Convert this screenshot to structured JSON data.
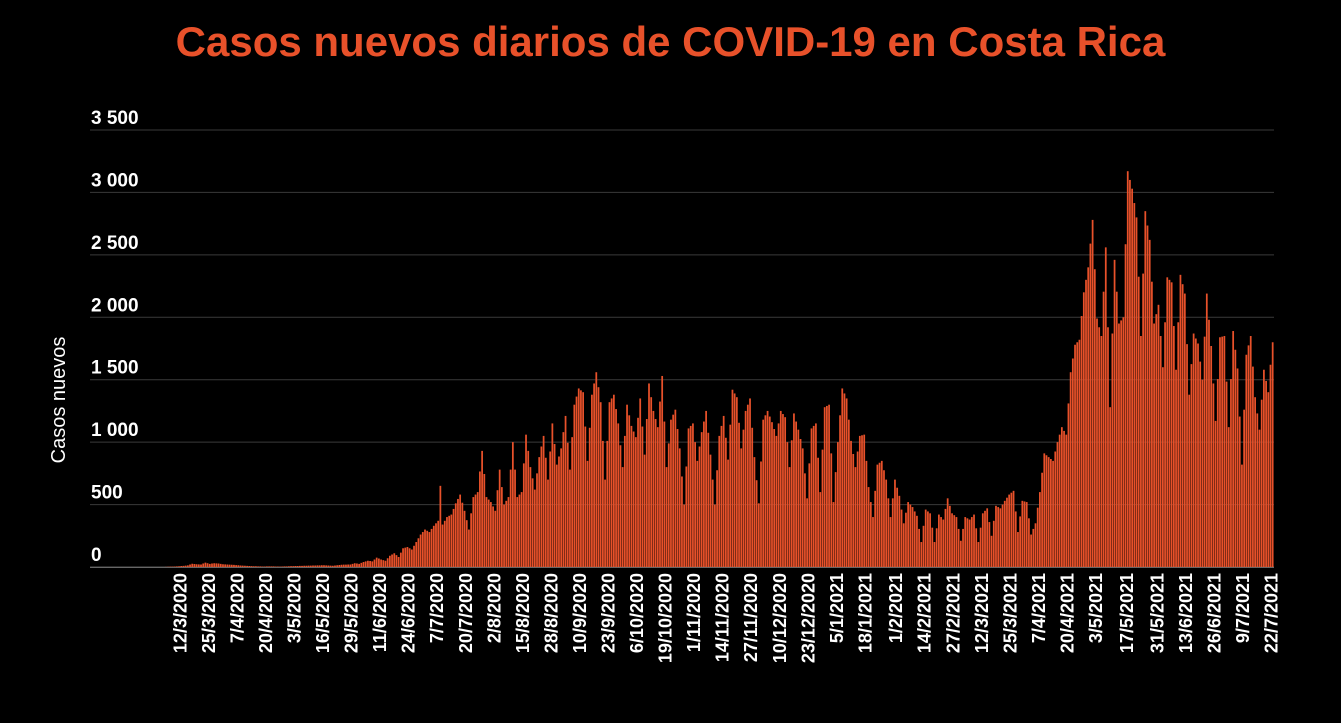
{
  "chart_data": {
    "type": "bar",
    "title": "Casos nuevos diarios de COVID-19 en Costa Rica",
    "xlabel": "",
    "ylabel": "Casos nuevos",
    "ylim": [
      0,
      3500
    ],
    "yticks": [
      0,
      500,
      1000,
      1500,
      2000,
      2500,
      3000,
      3500
    ],
    "ytick_labels": [
      "0",
      "500",
      "1 000",
      "1 500",
      "2 000",
      "2 500",
      "3 000",
      "3 500"
    ],
    "grid": true,
    "legend": null,
    "bar_color": "#E8512A",
    "background": "#000000",
    "x_start": "6/3/2020",
    "x_end": "23/7/2021",
    "xtick_labels": [
      "12/3/2020",
      "25/3/2020",
      "7/4/2020",
      "20/4/2020",
      "3/5/2020",
      "16/5/2020",
      "29/5/2020",
      "11/6/2020",
      "24/6/2020",
      "7/7/2020",
      "20/7/2020",
      "2/8/2020",
      "15/8/2020",
      "28/8/2020",
      "10/9/2020",
      "23/9/2020",
      "6/10/2020",
      "19/10/2020",
      "1/11/2020",
      "14/11/2020",
      "27/11/2020",
      "10/12/2020",
      "23/12/2020",
      "5/1/2021",
      "18/1/2021",
      "1/2/2021",
      "14/2/2021",
      "27/2/2021",
      "12/3/2021",
      "25/3/2021",
      "7/4/2021",
      "20/4/2021",
      "3/5/2021",
      "17/5/2021",
      "31/5/2021",
      "13/6/2021",
      "26/6/2021",
      "9/7/2021",
      "22/7/2021"
    ],
    "xtick_day_index": [
      6,
      19,
      32,
      45,
      58,
      71,
      84,
      97,
      110,
      123,
      136,
      149,
      162,
      175,
      188,
      201,
      214,
      227,
      240,
      253,
      266,
      279,
      292,
      305,
      318,
      332,
      345,
      358,
      371,
      384,
      397,
      410,
      423,
      437,
      451,
      464,
      477,
      490,
      503
    ],
    "values": []
  },
  "series_keypoints": [
    [
      0,
      1
    ],
    [
      5,
      5
    ],
    [
      8,
      9
    ],
    [
      10,
      13
    ],
    [
      12,
      26
    ],
    [
      14,
      22
    ],
    [
      16,
      20
    ],
    [
      18,
      35
    ],
    [
      20,
      25
    ],
    [
      22,
      30
    ],
    [
      24,
      28
    ],
    [
      26,
      22
    ],
    [
      28,
      20
    ],
    [
      30,
      18
    ],
    [
      32,
      15
    ],
    [
      34,
      12
    ],
    [
      36,
      10
    ],
    [
      38,
      8
    ],
    [
      40,
      6
    ],
    [
      44,
      4
    ],
    [
      48,
      5
    ],
    [
      52,
      3
    ],
    [
      56,
      6
    ],
    [
      60,
      8
    ],
    [
      64,
      10
    ],
    [
      68,
      12
    ],
    [
      72,
      14
    ],
    [
      76,
      10
    ],
    [
      80,
      18
    ],
    [
      84,
      20
    ],
    [
      86,
      30
    ],
    [
      88,
      25
    ],
    [
      90,
      40
    ],
    [
      92,
      50
    ],
    [
      94,
      45
    ],
    [
      96,
      75
    ],
    [
      98,
      60
    ],
    [
      100,
      50
    ],
    [
      102,
      90
    ],
    [
      104,
      110
    ],
    [
      106,
      80
    ],
    [
      108,
      150
    ],
    [
      110,
      160
    ],
    [
      112,
      140
    ],
    [
      114,
      200
    ],
    [
      116,
      260
    ],
    [
      118,
      300
    ],
    [
      120,
      280
    ],
    [
      122,
      330
    ],
    [
      124,
      370
    ],
    [
      125,
      650
    ],
    [
      126,
      340
    ],
    [
      128,
      400
    ],
    [
      130,
      420
    ],
    [
      132,
      510
    ],
    [
      134,
      580
    ],
    [
      136,
      450
    ],
    [
      138,
      300
    ],
    [
      140,
      560
    ],
    [
      142,
      600
    ],
    [
      144,
      930
    ],
    [
      146,
      560
    ],
    [
      148,
      520
    ],
    [
      150,
      450
    ],
    [
      152,
      780
    ],
    [
      154,
      500
    ],
    [
      156,
      560
    ],
    [
      158,
      1000
    ],
    [
      160,
      560
    ],
    [
      162,
      600
    ],
    [
      164,
      1060
    ],
    [
      166,
      800
    ],
    [
      168,
      620
    ],
    [
      170,
      880
    ],
    [
      172,
      1050
    ],
    [
      174,
      700
    ],
    [
      176,
      1150
    ],
    [
      178,
      820
    ],
    [
      180,
      950
    ],
    [
      182,
      1210
    ],
    [
      184,
      780
    ],
    [
      186,
      1300
    ],
    [
      188,
      1430
    ],
    [
      190,
      1400
    ],
    [
      192,
      850
    ],
    [
      194,
      1380
    ],
    [
      196,
      1560
    ],
    [
      198,
      1320
    ],
    [
      200,
      700
    ],
    [
      202,
      1320
    ],
    [
      204,
      1380
    ],
    [
      206,
      1150
    ],
    [
      208,
      800
    ],
    [
      210,
      1300
    ],
    [
      212,
      1130
    ],
    [
      214,
      1040
    ],
    [
      216,
      1350
    ],
    [
      218,
      900
    ],
    [
      220,
      1470
    ],
    [
      222,
      1250
    ],
    [
      224,
      1120
    ],
    [
      226,
      1530
    ],
    [
      228,
      800
    ],
    [
      230,
      1180
    ],
    [
      232,
      1260
    ],
    [
      234,
      950
    ],
    [
      236,
      500
    ],
    [
      238,
      1110
    ],
    [
      240,
      1150
    ],
    [
      242,
      850
    ],
    [
      244,
      1080
    ],
    [
      246,
      1250
    ],
    [
      248,
      900
    ],
    [
      250,
      500
    ],
    [
      252,
      1050
    ],
    [
      254,
      1210
    ],
    [
      256,
      860
    ],
    [
      258,
      1420
    ],
    [
      260,
      1360
    ],
    [
      262,
      950
    ],
    [
      264,
      1250
    ],
    [
      266,
      1350
    ],
    [
      268,
      880
    ],
    [
      270,
      510
    ],
    [
      272,
      1180
    ],
    [
      274,
      1250
    ],
    [
      276,
      1160
    ],
    [
      278,
      1050
    ],
    [
      280,
      1250
    ],
    [
      282,
      1200
    ],
    [
      284,
      800
    ],
    [
      286,
      1230
    ],
    [
      288,
      1100
    ],
    [
      290,
      950
    ],
    [
      292,
      550
    ],
    [
      294,
      1110
    ],
    [
      296,
      1150
    ],
    [
      298,
      600
    ],
    [
      300,
      1280
    ],
    [
      302,
      1300
    ],
    [
      304,
      520
    ],
    [
      306,
      1000
    ],
    [
      308,
      1430
    ],
    [
      310,
      1350
    ],
    [
      312,
      1010
    ],
    [
      314,
      800
    ],
    [
      316,
      1050
    ],
    [
      318,
      1060
    ],
    [
      320,
      640
    ],
    [
      322,
      400
    ],
    [
      324,
      820
    ],
    [
      326,
      850
    ],
    [
      328,
      700
    ],
    [
      330,
      400
    ],
    [
      332,
      700
    ],
    [
      334,
      570
    ],
    [
      336,
      350
    ],
    [
      338,
      520
    ],
    [
      340,
      480
    ],
    [
      342,
      410
    ],
    [
      344,
      200
    ],
    [
      346,
      460
    ],
    [
      348,
      430
    ],
    [
      350,
      200
    ],
    [
      352,
      420
    ],
    [
      354,
      380
    ],
    [
      356,
      550
    ],
    [
      358,
      430
    ],
    [
      360,
      400
    ],
    [
      362,
      210
    ],
    [
      364,
      400
    ],
    [
      366,
      380
    ],
    [
      368,
      420
    ],
    [
      370,
      200
    ],
    [
      372,
      430
    ],
    [
      374,
      470
    ],
    [
      376,
      250
    ],
    [
      378,
      490
    ],
    [
      380,
      470
    ],
    [
      382,
      530
    ],
    [
      384,
      580
    ],
    [
      386,
      610
    ],
    [
      388,
      280
    ],
    [
      390,
      530
    ],
    [
      392,
      520
    ],
    [
      394,
      260
    ],
    [
      396,
      350
    ],
    [
      398,
      600
    ],
    [
      400,
      910
    ],
    [
      402,
      880
    ],
    [
      404,
      850
    ],
    [
      406,
      1000
    ],
    [
      408,
      1120
    ],
    [
      410,
      1060
    ],
    [
      412,
      1560
    ],
    [
      414,
      1780
    ],
    [
      416,
      1820
    ],
    [
      418,
      2200
    ],
    [
      420,
      2400
    ],
    [
      422,
      2780
    ],
    [
      424,
      1990
    ],
    [
      426,
      1850
    ],
    [
      428,
      2560
    ],
    [
      430,
      1280
    ],
    [
      432,
      2460
    ],
    [
      434,
      1950
    ],
    [
      436,
      2000
    ],
    [
      438,
      3170
    ],
    [
      440,
      3030
    ],
    [
      442,
      2800
    ],
    [
      444,
      1850
    ],
    [
      446,
      2850
    ],
    [
      448,
      2620
    ],
    [
      450,
      1950
    ],
    [
      452,
      2100
    ],
    [
      454,
      1600
    ],
    [
      456,
      2320
    ],
    [
      458,
      2280
    ],
    [
      460,
      1580
    ],
    [
      462,
      2340
    ],
    [
      464,
      2190
    ],
    [
      466,
      1380
    ],
    [
      468,
      1870
    ],
    [
      470,
      1790
    ],
    [
      472,
      1500
    ],
    [
      474,
      2190
    ],
    [
      476,
      1770
    ],
    [
      478,
      1170
    ],
    [
      480,
      1840
    ],
    [
      482,
      1850
    ],
    [
      484,
      1120
    ],
    [
      486,
      1890
    ],
    [
      488,
      1590
    ],
    [
      490,
      820
    ],
    [
      492,
      1700
    ],
    [
      494,
      1850
    ],
    [
      496,
      1360
    ],
    [
      498,
      1100
    ],
    [
      500,
      1580
    ],
    [
      502,
      1400
    ],
    [
      503,
      1620
    ],
    [
      504,
      1800
    ]
  ]
}
